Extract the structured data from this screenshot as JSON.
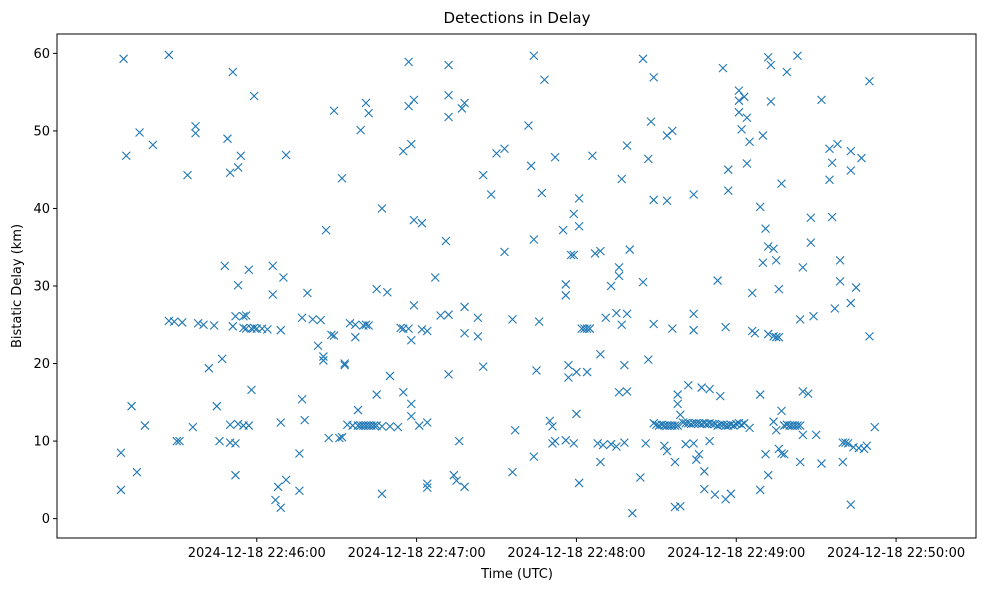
{
  "chart_data": {
    "type": "scatter",
    "title": "Detections in Delay",
    "xlabel": "Time (UTC)",
    "ylabel": "Bistatic Delay (km)",
    "marker": "x",
    "color": "#1f77b4",
    "grid": false,
    "xlim": [
      "2024-12-18 22:44:45",
      "2024-12-18 22:50:30"
    ],
    "ylim": [
      -2.5,
      62.5
    ],
    "x_ticks": [
      "2024-12-18 22:46:00",
      "2024-12-18 22:47:00",
      "2024-12-18 22:48:00",
      "2024-12-18 22:49:00",
      "2024-12-18 22:50:00"
    ],
    "y_ticks": [
      0,
      10,
      20,
      30,
      40,
      50,
      60
    ],
    "points": [
      [
        "22:45:10",
        59.3
      ],
      [
        "22:45:11",
        46.8
      ],
      [
        "22:45:13",
        14.5
      ],
      [
        "22:45:15",
        6.0
      ],
      [
        "22:45:16",
        49.8
      ],
      [
        "22:45:18",
        12.0
      ],
      [
        "22:45:21",
        48.2
      ],
      [
        "22:45:09",
        8.5
      ],
      [
        "22:45:09",
        3.7
      ],
      [
        "22:45:27",
        59.8
      ],
      [
        "22:45:27",
        25.5
      ],
      [
        "22:45:29",
        25.4
      ],
      [
        "22:45:30",
        10.0
      ],
      [
        "22:45:31",
        10.0
      ],
      [
        "22:45:32",
        25.3
      ],
      [
        "22:45:34",
        44.3
      ],
      [
        "22:45:36",
        11.8
      ],
      [
        "22:45:37",
        50.6
      ],
      [
        "22:45:37",
        49.7
      ],
      [
        "22:45:38",
        25.2
      ],
      [
        "22:45:40",
        25.0
      ],
      [
        "22:45:42",
        19.4
      ],
      [
        "22:45:44",
        24.9
      ],
      [
        "22:45:45",
        14.5
      ],
      [
        "22:45:46",
        10.0
      ],
      [
        "22:45:47",
        20.6
      ],
      [
        "22:45:48",
        32.6
      ],
      [
        "22:45:49",
        49.0
      ],
      [
        "22:45:50",
        44.6
      ],
      [
        "22:45:50",
        12.1
      ],
      [
        "22:45:50",
        9.8
      ],
      [
        "22:45:51",
        57.6
      ],
      [
        "22:45:51",
        24.8
      ],
      [
        "22:45:52",
        26.1
      ],
      [
        "22:45:52",
        9.7
      ],
      [
        "22:45:52",
        5.6
      ],
      [
        "22:45:53",
        45.3
      ],
      [
        "22:45:53",
        30.1
      ],
      [
        "22:45:53",
        12.2
      ],
      [
        "22:45:54",
        46.8
      ],
      [
        "22:45:55",
        26.1
      ],
      [
        "22:45:55",
        24.6
      ],
      [
        "22:45:55",
        12.0
      ],
      [
        "22:45:56",
        26.2
      ],
      [
        "22:45:56",
        24.5
      ],
      [
        "22:45:57",
        32.1
      ],
      [
        "22:45:57",
        12.0
      ],
      [
        "22:45:58",
        16.6
      ],
      [
        "22:45:58",
        24.5
      ],
      [
        "22:45:59",
        54.5
      ],
      [
        "22:45:59",
        24.6
      ],
      [
        "22:46:00",
        24.5
      ],
      [
        "22:46:02",
        24.5
      ],
      [
        "22:46:04",
        24.4
      ],
      [
        "22:46:06",
        32.6
      ],
      [
        "22:46:06",
        28.9
      ],
      [
        "22:46:07",
        2.4
      ],
      [
        "22:46:08",
        4.1
      ],
      [
        "22:46:09",
        24.3
      ],
      [
        "22:46:09",
        12.4
      ],
      [
        "22:46:09",
        1.4
      ],
      [
        "22:46:10",
        31.1
      ],
      [
        "22:46:11",
        46.9
      ],
      [
        "22:46:11",
        5.0
      ],
      [
        "22:46:16",
        8.4
      ],
      [
        "22:46:16",
        3.6
      ],
      [
        "22:46:17",
        15.4
      ],
      [
        "22:46:17",
        25.9
      ],
      [
        "22:46:18",
        12.7
      ],
      [
        "22:46:19",
        29.1
      ],
      [
        "22:46:21",
        25.7
      ],
      [
        "22:46:23",
        22.3
      ],
      [
        "22:46:24",
        25.6
      ],
      [
        "22:46:25",
        20.9
      ],
      [
        "22:46:25",
        20.4
      ],
      [
        "22:46:26",
        37.2
      ],
      [
        "22:46:27",
        10.4
      ],
      [
        "22:46:28",
        23.7
      ],
      [
        "22:46:29",
        52.6
      ],
      [
        "22:46:29",
        23.6
      ],
      [
        "22:46:31",
        10.4
      ],
      [
        "22:46:32",
        10.5
      ],
      [
        "22:46:32",
        43.9
      ],
      [
        "22:46:33",
        20.0
      ],
      [
        "22:46:33",
        19.8
      ],
      [
        "22:46:34",
        12.1
      ],
      [
        "22:46:35",
        25.2
      ],
      [
        "22:46:36",
        12.0
      ],
      [
        "22:46:37",
        25.0
      ],
      [
        "22:46:37",
        23.4
      ],
      [
        "22:46:38",
        12.0
      ],
      [
        "22:46:38",
        14.0
      ],
      [
        "22:46:39",
        50.1
      ],
      [
        "22:46:39",
        12.0
      ],
      [
        "22:46:40",
        24.9
      ],
      [
        "22:46:40",
        12.0
      ],
      [
        "22:46:41",
        53.6
      ],
      [
        "22:46:41",
        25.0
      ],
      [
        "22:46:41",
        12.0
      ],
      [
        "22:46:42",
        52.3
      ],
      [
        "22:46:42",
        24.9
      ],
      [
        "22:46:42",
        12.0
      ],
      [
        "22:46:43",
        12.0
      ],
      [
        "22:46:44",
        12.0
      ],
      [
        "22:46:45",
        29.6
      ],
      [
        "22:46:45",
        12.0
      ],
      [
        "22:46:45",
        16.0
      ],
      [
        "22:46:47",
        40.0
      ],
      [
        "22:46:47",
        11.9
      ],
      [
        "22:46:47",
        3.2
      ],
      [
        "22:46:49",
        29.2
      ],
      [
        "22:46:50",
        18.4
      ],
      [
        "22:46:50",
        11.9
      ],
      [
        "22:46:53",
        11.8
      ],
      [
        "22:46:54",
        24.6
      ],
      [
        "22:46:55",
        47.4
      ],
      [
        "22:46:55",
        24.5
      ],
      [
        "22:46:55",
        16.3
      ],
      [
        "22:46:57",
        58.9
      ],
      [
        "22:46:57",
        53.2
      ],
      [
        "22:46:57",
        24.5
      ],
      [
        "22:46:58",
        48.3
      ],
      [
        "22:46:58",
        23.0
      ],
      [
        "22:46:59",
        54.0
      ],
      [
        "22:46:59",
        38.5
      ],
      [
        "22:46:58",
        14.8
      ],
      [
        "22:46:58",
        13.2
      ],
      [
        "22:46:59",
        27.5
      ],
      [
        "22:47:01",
        12.0
      ],
      [
        "22:47:02",
        38.1
      ],
      [
        "22:47:02",
        24.4
      ],
      [
        "22:47:04",
        24.2
      ],
      [
        "22:47:04",
        12.4
      ],
      [
        "22:47:04",
        4.5
      ],
      [
        "22:47:04",
        4.0
      ],
      [
        "22:47:07",
        31.1
      ],
      [
        "22:47:09",
        26.2
      ],
      [
        "22:47:12",
        58.5
      ],
      [
        "22:47:12",
        54.6
      ],
      [
        "22:47:12",
        51.8
      ],
      [
        "22:47:11",
        35.8
      ],
      [
        "22:47:12",
        26.3
      ],
      [
        "22:47:12",
        18.6
      ],
      [
        "22:47:14",
        5.6
      ],
      [
        "22:47:15",
        4.9
      ],
      [
        "22:47:16",
        10.0
      ],
      [
        "22:47:17",
        52.9
      ],
      [
        "22:47:18",
        53.6
      ],
      [
        "22:47:18",
        27.3
      ],
      [
        "22:47:18",
        23.9
      ],
      [
        "22:47:18",
        4.1
      ],
      [
        "22:47:23",
        25.9
      ],
      [
        "22:47:23",
        23.5
      ],
      [
        "22:47:25",
        19.6
      ],
      [
        "22:47:25",
        44.3
      ],
      [
        "22:47:28",
        41.8
      ],
      [
        "22:47:30",
        47.1
      ],
      [
        "22:47:33",
        47.7
      ],
      [
        "22:47:33",
        34.4
      ],
      [
        "22:47:36",
        25.7
      ],
      [
        "22:47:36",
        6.0
      ],
      [
        "22:47:37",
        11.4
      ],
      [
        "22:47:42",
        50.7
      ],
      [
        "22:47:43",
        45.5
      ],
      [
        "22:47:44",
        59.7
      ],
      [
        "22:47:44",
        36.0
      ],
      [
        "22:47:44",
        8.0
      ],
      [
        "22:47:45",
        19.1
      ],
      [
        "22:47:46",
        25.4
      ],
      [
        "22:47:47",
        42.0
      ],
      [
        "22:47:48",
        56.6
      ],
      [
        "22:47:50",
        12.6
      ],
      [
        "22:47:51",
        11.9
      ],
      [
        "22:47:51",
        9.7
      ],
      [
        "22:47:52",
        46.6
      ],
      [
        "22:47:52",
        10.0
      ],
      [
        "22:47:55",
        37.2
      ],
      [
        "22:47:56",
        30.2
      ],
      [
        "22:47:56",
        28.8
      ],
      [
        "22:47:56",
        10.1
      ],
      [
        "22:47:57",
        19.8
      ],
      [
        "22:47:57",
        18.2
      ],
      [
        "22:47:58",
        34.0
      ],
      [
        "22:47:59",
        9.7
      ],
      [
        "22:47:59",
        34.0
      ],
      [
        "22:47:59",
        39.3
      ],
      [
        "22:48:00",
        18.9
      ],
      [
        "22:48:00",
        13.5
      ],
      [
        "22:48:01",
        41.3
      ],
      [
        "22:48:01",
        37.7
      ],
      [
        "22:48:01",
        4.6
      ],
      [
        "22:48:02",
        24.5
      ],
      [
        "22:48:03",
        24.5
      ],
      [
        "22:48:04",
        24.5
      ],
      [
        "22:48:04",
        18.9
      ],
      [
        "22:48:05",
        24.5
      ],
      [
        "22:48:05",
        24.5
      ],
      [
        "22:48:06",
        46.8
      ],
      [
        "22:48:07",
        34.2
      ],
      [
        "22:48:08",
        9.7
      ],
      [
        "22:48:09",
        7.3
      ],
      [
        "22:48:09",
        34.5
      ],
      [
        "22:48:09",
        21.2
      ],
      [
        "22:48:10",
        9.5
      ],
      [
        "22:48:11",
        25.9
      ],
      [
        "22:48:13",
        30.0
      ],
      [
        "22:48:13",
        9.6
      ],
      [
        "22:48:15",
        26.5
      ],
      [
        "22:48:15",
        9.3
      ],
      [
        "22:48:16",
        32.4
      ],
      [
        "22:48:16",
        31.3
      ],
      [
        "22:48:17",
        43.8
      ],
      [
        "22:48:16",
        16.3
      ],
      [
        "22:48:17",
        25.0
      ],
      [
        "22:48:18",
        19.8
      ],
      [
        "22:48:18",
        9.8
      ],
      [
        "22:48:19",
        48.1
      ],
      [
        "22:48:19",
        26.4
      ],
      [
        "22:48:20",
        34.7
      ],
      [
        "22:48:19",
        16.4
      ],
      [
        "22:48:21",
        0.7
      ],
      [
        "22:48:24",
        5.3
      ],
      [
        "22:48:25",
        59.3
      ],
      [
        "22:48:25",
        30.5
      ],
      [
        "22:48:26",
        9.7
      ],
      [
        "22:48:27",
        46.4
      ],
      [
        "22:48:27",
        20.5
      ],
      [
        "22:48:28",
        51.2
      ],
      [
        "22:48:29",
        56.9
      ],
      [
        "22:48:29",
        41.1
      ],
      [
        "22:48:29",
        25.1
      ],
      [
        "22:48:29",
        12.3
      ],
      [
        "22:48:30",
        12.1
      ],
      [
        "22:48:31",
        12.0
      ],
      [
        "22:48:32",
        12.1
      ],
      [
        "22:48:33",
        9.4
      ],
      [
        "22:48:33",
        12.0
      ],
      [
        "22:48:34",
        41.0
      ],
      [
        "22:48:34",
        49.4
      ],
      [
        "22:48:34",
        8.7
      ],
      [
        "22:48:34",
        12.0
      ],
      [
        "22:48:35",
        12.0
      ],
      [
        "22:48:36",
        50.0
      ],
      [
        "22:48:36",
        24.5
      ],
      [
        "22:48:36",
        12.0
      ],
      [
        "22:48:37",
        12.0
      ],
      [
        "22:48:37",
        7.3
      ],
      [
        "22:48:37",
        1.5
      ],
      [
        "22:48:38",
        16.0
      ],
      [
        "22:48:38",
        14.8
      ],
      [
        "22:48:38",
        12.0
      ],
      [
        "22:48:39",
        13.4
      ],
      [
        "22:48:39",
        1.6
      ],
      [
        "22:48:40",
        12.4
      ],
      [
        "22:48:41",
        12.3
      ],
      [
        "22:48:41",
        9.6
      ],
      [
        "22:48:42",
        17.2
      ],
      [
        "22:48:42",
        12.3
      ],
      [
        "22:48:43",
        12.2
      ],
      [
        "22:48:44",
        41.8
      ],
      [
        "22:48:44",
        26.4
      ],
      [
        "22:48:44",
        24.3
      ],
      [
        "22:48:44",
        9.7
      ],
      [
        "22:48:44",
        12.3
      ],
      [
        "22:48:45",
        12.3
      ],
      [
        "22:48:45",
        7.6
      ],
      [
        "22:48:46",
        8.3
      ],
      [
        "22:48:46",
        12.3
      ],
      [
        "22:48:47",
        16.9
      ],
      [
        "22:48:47",
        12.2
      ],
      [
        "22:48:48",
        6.1
      ],
      [
        "22:48:48",
        12.3
      ],
      [
        "22:48:48",
        3.8
      ],
      [
        "22:48:49",
        12.2
      ],
      [
        "22:48:50",
        10.0
      ],
      [
        "22:48:50",
        16.7
      ],
      [
        "22:48:50",
        12.3
      ],
      [
        "22:48:51",
        12.2
      ],
      [
        "22:48:52",
        3.1
      ],
      [
        "22:48:52",
        12.2
      ],
      [
        "22:48:53",
        30.7
      ],
      [
        "22:48:53",
        12.0
      ],
      [
        "22:48:54",
        15.8
      ],
      [
        "22:48:54",
        12.1
      ],
      [
        "22:48:55",
        58.1
      ],
      [
        "22:48:55",
        12.1
      ],
      [
        "22:48:56",
        24.7
      ],
      [
        "22:48:56",
        2.5
      ],
      [
        "22:48:56",
        12.0
      ],
      [
        "22:48:57",
        45.0
      ],
      [
        "22:48:57",
        42.3
      ],
      [
        "22:48:57",
        12.0
      ],
      [
        "22:48:58",
        3.2
      ],
      [
        "22:48:58",
        12.1
      ],
      [
        "22:48:59",
        12.0
      ],
      [
        "22:49:00",
        12.2
      ],
      [
        "22:49:01",
        52.4
      ],
      [
        "22:49:01",
        53.9
      ],
      [
        "22:49:01",
        55.2
      ],
      [
        "22:49:01",
        12.3
      ],
      [
        "22:49:02",
        50.2
      ],
      [
        "22:49:02",
        12.1
      ],
      [
        "22:49:03",
        54.4
      ],
      [
        "22:49:03",
        12.3
      ],
      [
        "22:49:04",
        51.7
      ],
      [
        "22:49:04",
        45.8
      ],
      [
        "22:49:05",
        11.7
      ],
      [
        "22:49:05",
        48.6
      ],
      [
        "22:49:06",
        29.1
      ],
      [
        "22:49:06",
        24.2
      ],
      [
        "22:49:07",
        23.9
      ],
      [
        "22:49:09",
        40.2
      ],
      [
        "22:49:09",
        16.0
      ],
      [
        "22:49:09",
        3.7
      ],
      [
        "22:49:10",
        49.4
      ],
      [
        "22:49:10",
        33.0
      ],
      [
        "22:49:11",
        37.4
      ],
      [
        "22:49:11",
        8.3
      ],
      [
        "22:49:12",
        59.5
      ],
      [
        "22:49:12",
        35.1
      ],
      [
        "22:49:12",
        23.8
      ],
      [
        "22:49:12",
        5.6
      ],
      [
        "22:49:13",
        58.5
      ],
      [
        "22:49:13",
        53.8
      ],
      [
        "22:49:14",
        34.8
      ],
      [
        "22:49:14",
        12.5
      ],
      [
        "22:49:14",
        23.5
      ],
      [
        "22:49:15",
        33.3
      ],
      [
        "22:49:15",
        23.4
      ],
      [
        "22:49:15",
        11.4
      ],
      [
        "22:49:16",
        29.6
      ],
      [
        "22:49:16",
        9.0
      ],
      [
        "22:49:16",
        23.4
      ],
      [
        "22:49:17",
        43.2
      ],
      [
        "22:49:17",
        13.9
      ],
      [
        "22:49:17",
        8.4
      ],
      [
        "22:49:18",
        8.3
      ],
      [
        "22:49:18",
        12.0
      ],
      [
        "22:49:19",
        57.6
      ],
      [
        "22:49:19",
        12.1
      ],
      [
        "22:49:20",
        12.0
      ],
      [
        "22:49:21",
        12.0
      ],
      [
        "22:49:22",
        12.0
      ],
      [
        "22:49:23",
        59.7
      ],
      [
        "22:49:23",
        12.0
      ],
      [
        "22:49:24",
        25.7
      ],
      [
        "22:49:24",
        7.3
      ],
      [
        "22:49:24",
        12.0
      ],
      [
        "22:49:25",
        32.4
      ],
      [
        "22:49:25",
        16.4
      ],
      [
        "22:49:25",
        10.8
      ],
      [
        "22:49:27",
        16.1
      ],
      [
        "22:49:28",
        38.8
      ],
      [
        "22:49:28",
        35.6
      ],
      [
        "22:49:29",
        26.1
      ],
      [
        "22:49:30",
        10.8
      ],
      [
        "22:49:32",
        54.0
      ],
      [
        "22:49:32",
        7.1
      ],
      [
        "22:49:35",
        43.7
      ],
      [
        "22:49:35",
        47.7
      ],
      [
        "22:49:36",
        45.9
      ],
      [
        "22:49:36",
        38.9
      ],
      [
        "22:49:37",
        27.1
      ],
      [
        "22:49:38",
        48.3
      ],
      [
        "22:49:39",
        33.3
      ],
      [
        "22:49:39",
        30.6
      ],
      [
        "22:49:40",
        9.8
      ],
      [
        "22:49:40",
        7.3
      ],
      [
        "22:49:41",
        9.8
      ],
      [
        "22:49:42",
        9.7
      ],
      [
        "22:49:43",
        47.4
      ],
      [
        "22:49:43",
        44.9
      ],
      [
        "22:49:43",
        27.8
      ],
      [
        "22:49:43",
        1.8
      ],
      [
        "22:49:44",
        9.2
      ],
      [
        "22:49:45",
        29.8
      ],
      [
        "22:49:46",
        9.1
      ],
      [
        "22:49:47",
        46.5
      ],
      [
        "22:49:48",
        9.0
      ],
      [
        "22:49:49",
        9.4
      ],
      [
        "22:49:50",
        56.4
      ],
      [
        "22:49:50",
        23.5
      ],
      [
        "22:49:52",
        11.8
      ]
    ]
  }
}
